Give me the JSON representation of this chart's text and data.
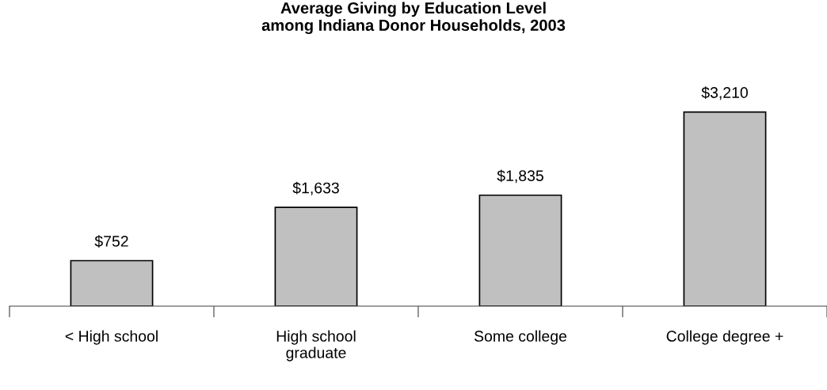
{
  "chart_data": {
    "type": "bar",
    "title": "Average Giving by Education Level\namong Indiana Donor Households, 2003",
    "categories": [
      "< High school",
      "High school\ngraduate",
      "Some college",
      "College degree +"
    ],
    "values": [
      752,
      1633,
      1835,
      3210
    ],
    "value_labels": [
      "$752",
      "$1,633",
      "$1,835",
      "$3,210"
    ],
    "color": "#c0c0c0",
    "tick_labels": "x"
  }
}
